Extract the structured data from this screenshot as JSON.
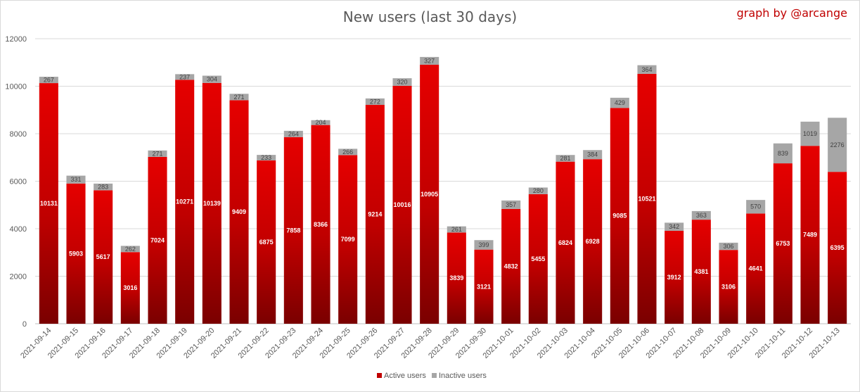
{
  "credit": "graph by @arcange",
  "chart_data": {
    "type": "bar",
    "stacked": true,
    "title": "New users (last 30 days)",
    "xlabel": "",
    "ylabel": "",
    "ylim": [
      0,
      12000
    ],
    "yticks": [
      0,
      2000,
      4000,
      6000,
      8000,
      10000,
      12000
    ],
    "grid": true,
    "legend_position": "bottom",
    "categories": [
      "2021-09-14",
      "2021-09-15",
      "2021-09-16",
      "2021-09-17",
      "2021-09-18",
      "2021-09-19",
      "2021-09-20",
      "2021-09-21",
      "2021-09-22",
      "2021-09-23",
      "2021-09-24",
      "2021-09-25",
      "2021-09-26",
      "2021-09-27",
      "2021-09-28",
      "2021-09-29",
      "2021-09-30",
      "2021-10-01",
      "2021-10-02",
      "2021-10-03",
      "2021-10-04",
      "2021-10-05",
      "2021-10-06",
      "2021-10-07",
      "2021-10-08",
      "2021-10-09",
      "2021-10-10",
      "2021-10-11",
      "2021-10-12",
      "2021-10-13"
    ],
    "series": [
      {
        "name": "Active users",
        "color": "#c00000",
        "values": [
          10131,
          5903,
          5617,
          3016,
          7024,
          10271,
          10139,
          9409,
          6875,
          7858,
          8366,
          7099,
          9214,
          10016,
          10905,
          3839,
          3121,
          4832,
          5455,
          6824,
          6928,
          9085,
          10521,
          3912,
          4381,
          3106,
          4641,
          6753,
          7489,
          6395
        ]
      },
      {
        "name": "Inactive users",
        "color": "#a6a6a6",
        "values": [
          267,
          331,
          283,
          262,
          271,
          237,
          304,
          271,
          233,
          264,
          204,
          266,
          272,
          320,
          327,
          261,
          399,
          357,
          280,
          281,
          384,
          429,
          364,
          342,
          363,
          306,
          570,
          839,
          1019,
          2276
        ]
      }
    ]
  }
}
